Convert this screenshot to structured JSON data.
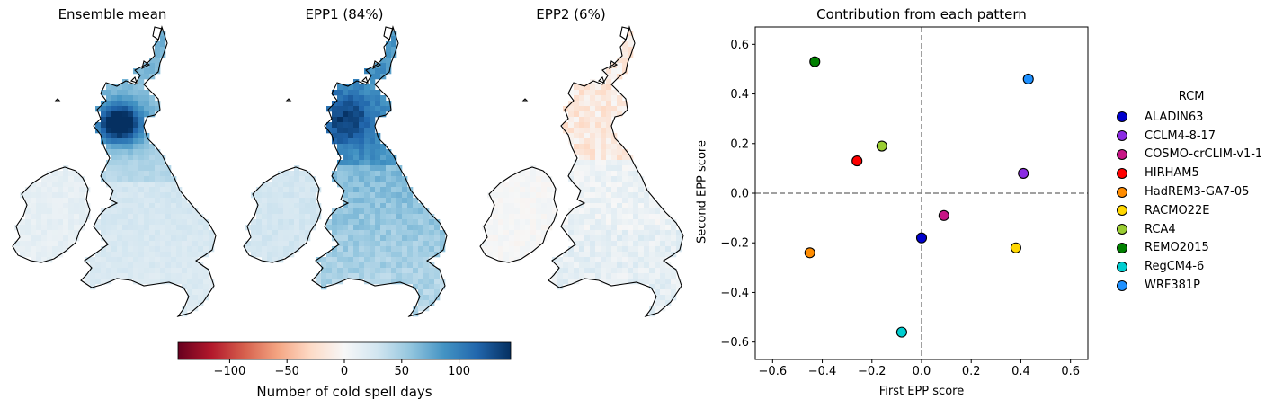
{
  "maps": [
    {
      "title": "Ensemble mean",
      "kind": "mean"
    },
    {
      "title": "EPP1 (84%)",
      "kind": "epp1"
    },
    {
      "title": "EPP2 (6%)",
      "kind": "epp2"
    }
  ],
  "colorbar": {
    "label": "Number of cold spell days",
    "ticks": [
      "−100",
      "−50",
      "0",
      "50",
      "100"
    ],
    "tick_values": [
      -100,
      -50,
      0,
      50,
      100
    ],
    "range": [
      -145,
      145
    ],
    "colormap": "RdBu"
  },
  "chart_data": {
    "type": "scatter",
    "title": "Contribution from each pattern",
    "xlabel": "First EPP score",
    "ylabel": "Second EPP score",
    "xlim": [
      -0.67,
      0.67
    ],
    "ylim": [
      -0.67,
      0.67
    ],
    "xticks": [
      "−0.6",
      "−0.4",
      "−0.2",
      "0.0",
      "0.2",
      "0.4",
      "0.6"
    ],
    "yticks": [
      "−0.6",
      "−0.4",
      "−0.2",
      "0.0",
      "0.2",
      "0.4",
      "0.6"
    ],
    "tick_values": [
      -0.6,
      -0.4,
      -0.2,
      0.0,
      0.2,
      0.4,
      0.6
    ],
    "reference_lines": {
      "x": 0,
      "y": 0,
      "style": "dashed",
      "color": "#808080"
    },
    "legend_title": "RCM",
    "legend_position": "right",
    "series": [
      {
        "name": "ALADIN63",
        "x": 0.0,
        "y": -0.18,
        "color": "#0000cd"
      },
      {
        "name": "CCLM4-8-17",
        "x": 0.41,
        "y": 0.08,
        "color": "#8a2be2"
      },
      {
        "name": "COSMO-crCLIM-v1-1",
        "x": 0.09,
        "y": -0.09,
        "color": "#c71585"
      },
      {
        "name": "HIRHAM5",
        "x": -0.26,
        "y": 0.13,
        "color": "#ff0000"
      },
      {
        "name": "HadREM3-GA7-05",
        "x": -0.45,
        "y": -0.24,
        "color": "#ff8c00"
      },
      {
        "name": "RACMO22E",
        "x": 0.38,
        "y": -0.22,
        "color": "#ffd700"
      },
      {
        "name": "RCA4",
        "x": -0.16,
        "y": 0.19,
        "color": "#9acd32"
      },
      {
        "name": "REMO2015",
        "x": -0.43,
        "y": 0.53,
        "color": "#008000"
      },
      {
        "name": "RegCM4-6",
        "x": -0.08,
        "y": -0.56,
        "color": "#00ced1"
      },
      {
        "name": "WRF381P",
        "x": 0.43,
        "y": 0.46,
        "color": "#1e90ff"
      }
    ]
  }
}
